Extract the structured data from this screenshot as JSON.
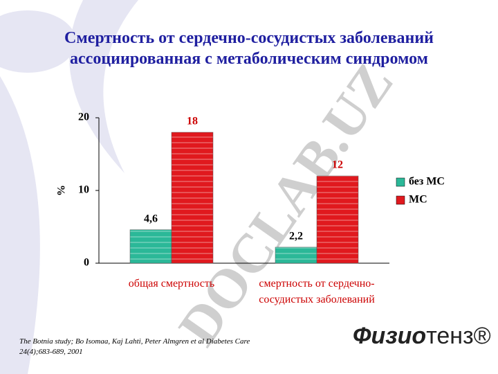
{
  "chart_data": {
    "type": "bar",
    "title": "Смертность от сердечно-сосудистых заболеваний ассоциированная с метаболическим синдромом",
    "ylabel": "%",
    "categories": [
      "общая смертность",
      "смертность от сердечно-сосудистых заболеваний"
    ],
    "series": [
      {
        "name": "без МС",
        "color": "#2bb898",
        "values": [
          4.6,
          2.2
        ],
        "value_labels": [
          "4,6",
          "2,2"
        ]
      },
      {
        "name": "МС",
        "color": "#e0191e",
        "values": [
          18,
          12
        ]
      }
    ],
    "ylim": [
      0,
      20
    ],
    "yticks": [
      0,
      10,
      20
    ],
    "legend": "right"
  },
  "footnote": "The Botnia study; Bo Isomaa, Kaj Lahti, Peter Almgren et al Diabetes Care 24(4);683-689, 2001",
  "logo": {
    "bold": "Физио",
    "light": "тенз®"
  },
  "watermark": "DOCLAB.UZ"
}
